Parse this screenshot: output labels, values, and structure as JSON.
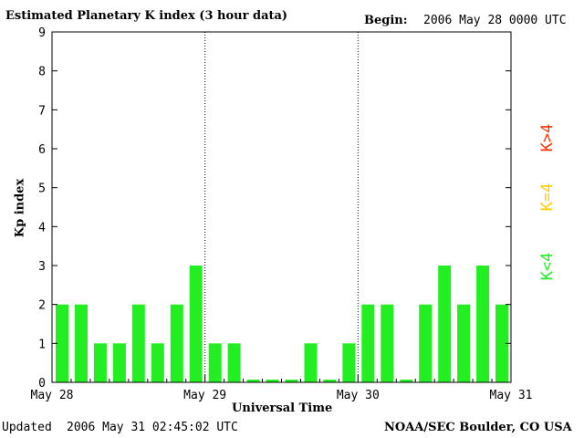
{
  "header": {
    "title": "Estimated Planetary K index (3 hour data)",
    "begin_label": "Begin:",
    "begin_value": "2006 May 28 0000 UTC"
  },
  "footer": {
    "updated_label": "Updated",
    "updated_value": "2006 May 31 02:45:02 UTC",
    "credit": "NOAA/SEC Boulder, CO USA"
  },
  "legend": {
    "high": "K>4",
    "equal": "K=4",
    "low": "K<4"
  },
  "colors": {
    "low": "#22ee22",
    "equal": "#ffcc00",
    "high": "#ff3300",
    "axis": "#000000"
  },
  "chart_data": {
    "type": "bar",
    "title": "Estimated Planetary K index (3 hour data)",
    "xlabel": "Universal Time",
    "ylabel": "Kp index",
    "ylim": [
      0,
      9
    ],
    "yticks": [
      0,
      1,
      2,
      3,
      4,
      5,
      6,
      7,
      8,
      9
    ],
    "xlim_days": [
      "May 28",
      "May 31"
    ],
    "xtick_labels": [
      "May 28",
      "May 29",
      "May 30",
      "May 31"
    ],
    "day_separators": [
      "May 29",
      "May 30"
    ],
    "bars_per_day": 8,
    "values": [
      2,
      2,
      1,
      1,
      2,
      1,
      2,
      3,
      1,
      1,
      0,
      0,
      0,
      1,
      0,
      1,
      2,
      2,
      0,
      2,
      3,
      2,
      3,
      2
    ]
  }
}
